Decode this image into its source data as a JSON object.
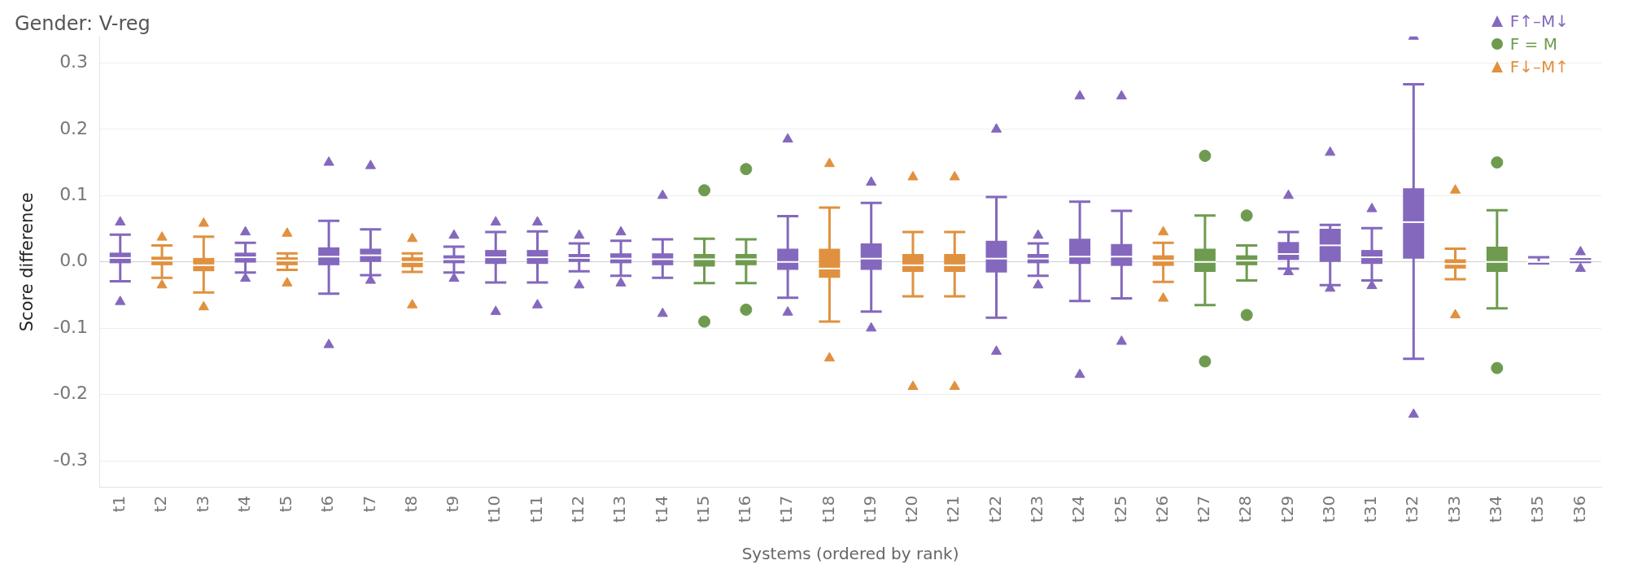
{
  "chart_data": {
    "type": "box",
    "title": "Gender: V-reg",
    "xlabel": "Systems (ordered by rank)",
    "ylabel": "Score difference",
    "categories": [
      "t1",
      "t2",
      "t3",
      "t4",
      "t5",
      "t6",
      "t7",
      "t8",
      "t9",
      "t10",
      "t11",
      "t12",
      "t13",
      "t14",
      "t15",
      "t16",
      "t17",
      "t18",
      "t19",
      "t20",
      "t21",
      "t22",
      "t23",
      "t24",
      "t25",
      "t26",
      "t27",
      "t28",
      "t29",
      "t30",
      "t31",
      "t32",
      "t33",
      "t34",
      "t35",
      "t36"
    ],
    "ylim": [
      -0.34,
      0.34
    ],
    "yticks": [
      {
        "value": -0.3,
        "label": "-0.3"
      },
      {
        "value": -0.2,
        "label": "-0.2"
      },
      {
        "value": -0.1,
        "label": "-0.1"
      },
      {
        "value": 0,
        "label": "0.0"
      },
      {
        "value": 0.1,
        "label": "0.1"
      },
      {
        "value": 0.2,
        "label": "0.2"
      },
      {
        "value": 0.3,
        "label": "0.3"
      }
    ],
    "grid": "y",
    "legend": "top right",
    "series": [
      {
        "name": "F↑–M↓",
        "color": "#8468bd",
        "marker": "triangle",
        "boxes": [
          {
            "low": -0.029,
            "q1": -0.002,
            "median": 0.006,
            "q3": 0.014,
            "high": 0.041,
            "outliers": [
              0.06,
              -0.06
            ]
          },
          null,
          null,
          {
            "low": -0.016,
            "q1": -0.001,
            "median": 0.007,
            "q3": 0.014,
            "high": 0.029,
            "outliers": [
              0.045,
              -0.025
            ]
          },
          null,
          {
            "low": -0.048,
            "q1": -0.005,
            "median": 0.008,
            "q3": 0.022,
            "high": 0.062,
            "outliers": [
              0.15,
              -0.125
            ]
          },
          {
            "low": -0.02,
            "q1": 0,
            "median": 0.01,
            "q3": 0.02,
            "high": 0.049,
            "outliers": [
              0.145,
              -0.028
            ]
          },
          null,
          {
            "low": -0.016,
            "q1": -0.002,
            "median": 0.004,
            "q3": 0.01,
            "high": 0.023,
            "outliers": [
              0.04,
              -0.025
            ]
          },
          {
            "low": -0.031,
            "q1": -0.003,
            "median": 0.007,
            "q3": 0.018,
            "high": 0.045,
            "outliers": [
              0.06,
              -0.075
            ]
          },
          {
            "low": -0.031,
            "q1": -0.003,
            "median": 0.007,
            "q3": 0.018,
            "high": 0.046,
            "outliers": [
              0.06,
              -0.065
            ]
          },
          {
            "low": -0.014,
            "q1": 0,
            "median": 0.006,
            "q3": 0.012,
            "high": 0.028,
            "outliers": [
              0.04,
              -0.035
            ]
          },
          {
            "low": -0.021,
            "q1": -0.002,
            "median": 0.005,
            "q3": 0.013,
            "high": 0.032,
            "outliers": [
              0.045,
              -0.032
            ]
          },
          {
            "low": -0.024,
            "q1": -0.005,
            "median": 0.004,
            "q3": 0.013,
            "high": 0.034,
            "outliers": [
              0.1,
              -0.078
            ]
          },
          null,
          null,
          {
            "low": -0.054,
            "q1": -0.012,
            "median": 0,
            "q3": 0.02,
            "high": 0.069,
            "outliers": [
              0.185,
              -0.076
            ]
          },
          null,
          {
            "low": -0.075,
            "q1": -0.012,
            "median": 0.005,
            "q3": 0.028,
            "high": 0.089,
            "outliers": [
              0.12,
              -0.1
            ]
          },
          null,
          null,
          {
            "low": -0.084,
            "q1": -0.016,
            "median": 0.005,
            "q3": 0.032,
            "high": 0.098,
            "outliers": [
              0.2,
              -0.135
            ]
          },
          {
            "low": -0.021,
            "q1": -0.002,
            "median": 0.005,
            "q3": 0.012,
            "high": 0.028,
            "outliers": [
              0.04,
              -0.035
            ]
          },
          {
            "low": -0.059,
            "q1": -0.003,
            "median": 0.008,
            "q3": 0.035,
            "high": 0.091,
            "outliers": [
              0.25,
              -0.17
            ]
          },
          {
            "low": -0.055,
            "q1": -0.006,
            "median": 0.008,
            "q3": 0.027,
            "high": 0.077,
            "outliers": [
              0.25,
              -0.12
            ]
          },
          null,
          null,
          null,
          {
            "low": -0.01,
            "q1": 0.003,
            "median": 0.012,
            "q3": 0.03,
            "high": 0.045,
            "outliers": [
              0.1,
              -0.015
            ]
          },
          {
            "low": -0.035,
            "q1": 0,
            "median": 0.025,
            "q3": 0.05,
            "high": 0.056,
            "outliers": [
              0.165,
              -0.04
            ]
          },
          {
            "low": -0.028,
            "q1": -0.003,
            "median": 0.007,
            "q3": 0.018,
            "high": 0.051,
            "outliers": [
              0.08,
              -0.036
            ]
          },
          {
            "low": -0.146,
            "q1": 0.005,
            "median": 0.06,
            "q3": 0.111,
            "high": 0.268,
            "outliers": [
              0.34,
              -0.23
            ]
          },
          null,
          null,
          {
            "low": -0.002,
            "q1": 0,
            "median": 0,
            "q3": 0,
            "high": 0.007
          },
          {
            "low": 0,
            "q1": 0,
            "median": 0.002,
            "q3": 0.004,
            "high": 0.004,
            "outliers": [
              0.015,
              -0.01
            ]
          }
        ]
      },
      {
        "name": "F = M",
        "color": "#6e9b4f",
        "marker": "circle",
        "boxes": [
          null,
          null,
          null,
          null,
          null,
          null,
          null,
          null,
          null,
          null,
          null,
          null,
          null,
          null,
          {
            "low": -0.032,
            "q1": -0.007,
            "median": 0.004,
            "q3": 0.012,
            "high": 0.035,
            "outliers": [
              0.108,
              -0.09
            ]
          },
          {
            "low": -0.032,
            "q1": -0.005,
            "median": 0.004,
            "q3": 0.012,
            "high": 0.034,
            "outliers": [
              0.14,
              -0.072
            ]
          },
          null,
          null,
          null,
          null,
          null,
          null,
          null,
          null,
          null,
          null,
          {
            "low": -0.065,
            "q1": -0.015,
            "median": 0,
            "q3": 0.02,
            "high": 0.07,
            "outliers": [
              0.16,
              -0.15
            ]
          },
          {
            "low": -0.028,
            "q1": -0.005,
            "median": 0.002,
            "q3": 0.01,
            "high": 0.025,
            "outliers": [
              0.07,
              -0.08
            ]
          },
          null,
          null,
          null,
          null,
          null,
          {
            "low": -0.07,
            "q1": -0.015,
            "median": 0,
            "q3": 0.023,
            "high": 0.078,
            "outliers": [
              0.15,
              -0.16
            ]
          },
          null,
          null
        ]
      },
      {
        "name": "F↓–M↑",
        "color": "#e0913f",
        "marker": "triangle",
        "boxes": [
          null,
          {
            "low": -0.024,
            "q1": -0.005,
            "median": 0.002,
            "q3": 0.008,
            "high": 0.025,
            "outliers": [
              0.037,
              -0.035
            ]
          },
          {
            "low": -0.046,
            "q1": -0.014,
            "median": -0.005,
            "q3": 0.006,
            "high": 0.038,
            "outliers": [
              0.058,
              -0.068
            ]
          },
          null,
          {
            "low": -0.012,
            "q1": -0.005,
            "median": 0.002,
            "q3": 0.007,
            "high": 0.013,
            "outliers": [
              0.043,
              -0.032
            ]
          },
          null,
          null,
          {
            "low": -0.015,
            "q1": -0.008,
            "median": 0,
            "q3": 0.007,
            "high": 0.013,
            "outliers": [
              0.035,
              -0.065
            ]
          },
          null,
          null,
          null,
          null,
          null,
          null,
          null,
          null,
          null,
          {
            "low": -0.09,
            "q1": -0.024,
            "median": -0.01,
            "q3": 0.02,
            "high": 0.082,
            "outliers": [
              0.148,
              -0.145
            ]
          },
          null,
          {
            "low": -0.052,
            "q1": -0.015,
            "median": -0.005,
            "q3": 0.012,
            "high": 0.045,
            "outliers": [
              0.128,
              -0.188
            ]
          },
          {
            "low": -0.052,
            "q1": -0.015,
            "median": -0.005,
            "q3": 0.012,
            "high": 0.045,
            "outliers": [
              0.128,
              -0.188
            ]
          },
          null,
          null,
          null,
          null,
          {
            "low": -0.03,
            "q1": -0.006,
            "median": 0.002,
            "q3": 0.01,
            "high": 0.029,
            "outliers": [
              0.045,
              -0.055
            ]
          },
          null,
          null,
          null,
          null,
          null,
          null,
          {
            "low": -0.026,
            "q1": -0.01,
            "median": -0.003,
            "q3": 0.004,
            "high": 0.02,
            "outliers": [
              0.108,
              -0.08
            ]
          },
          null,
          null,
          null
        ]
      }
    ]
  }
}
